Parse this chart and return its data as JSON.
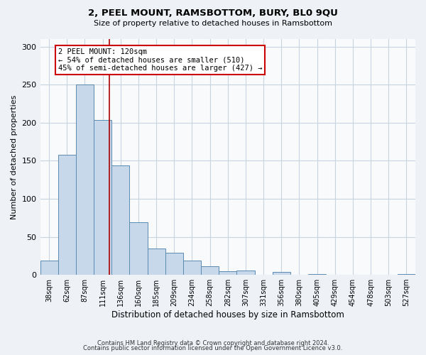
{
  "title": "2, PEEL MOUNT, RAMSBOTTOM, BURY, BL0 9QU",
  "subtitle": "Size of property relative to detached houses in Ramsbottom",
  "xlabel": "Distribution of detached houses by size in Ramsbottom",
  "ylabel": "Number of detached properties",
  "bin_labels": [
    "38sqm",
    "62sqm",
    "87sqm",
    "111sqm",
    "136sqm",
    "160sqm",
    "185sqm",
    "209sqm",
    "234sqm",
    "258sqm",
    "282sqm",
    "307sqm",
    "331sqm",
    "356sqm",
    "380sqm",
    "405sqm",
    "429sqm",
    "454sqm",
    "478sqm",
    "503sqm",
    "527sqm"
  ],
  "bar_values": [
    19,
    158,
    250,
    204,
    144,
    69,
    35,
    29,
    19,
    11,
    5,
    6,
    0,
    4,
    0,
    1,
    0,
    0,
    0,
    0,
    1
  ],
  "bar_color": "#c8d8eb",
  "bar_edge_color": "#5a8ab0",
  "vline_x": 3.36,
  "vline_color": "#aa0000",
  "annotation_title": "2 PEEL MOUNT: 120sqm",
  "annotation_line1": "← 54% of detached houses are smaller (510)",
  "annotation_line2": "45% of semi-detached houses are larger (427) →",
  "annotation_box_color": "white",
  "annotation_box_edge": "#cc0000",
  "ylim": [
    0,
    310
  ],
  "yticks": [
    0,
    50,
    100,
    150,
    200,
    250,
    300
  ],
  "footer1": "Contains HM Land Registry data © Crown copyright and database right 2024.",
  "footer2": "Contains public sector information licensed under the Open Government Licence v3.0.",
  "background_color": "#eef2f7",
  "plot_background": "#f8fafc",
  "grid_color": "#c8d4e0"
}
